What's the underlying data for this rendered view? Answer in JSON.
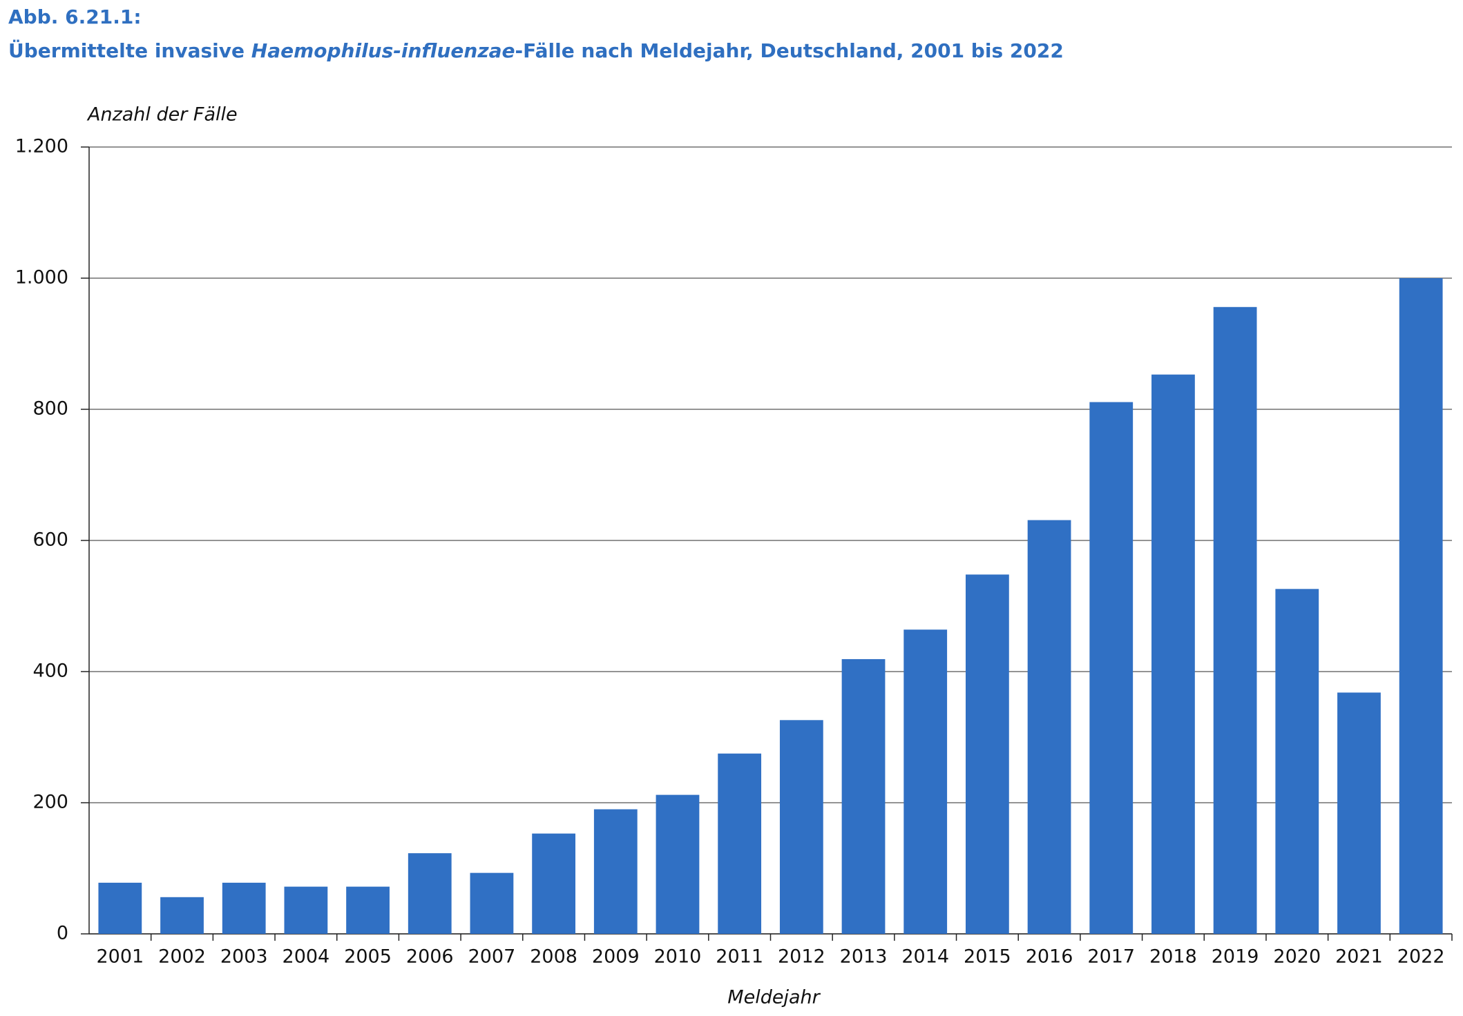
{
  "chart_data": {
    "type": "bar",
    "figure_label": "Abb. 6.21.1:",
    "title_parts": [
      "Übermittelte invasive",
      "Haemophilus-influenzae",
      "-Fälle nach Meldejahr, Deutschland, 2001 bis 2022"
    ],
    "y_label": "Anzahl der Fälle",
    "x_label": "Meldejahr",
    "categories": [
      "2001",
      "2002",
      "2003",
      "2004",
      "2005",
      "2006",
      "2007",
      "2008",
      "2009",
      "2010",
      "2011",
      "2012",
      "2013",
      "2014",
      "2015",
      "2016",
      "2017",
      "2018",
      "2019",
      "2020",
      "2021",
      "2022"
    ],
    "values": [
      78,
      56,
      78,
      72,
      72,
      123,
      93,
      153,
      190,
      212,
      275,
      326,
      419,
      464,
      548,
      631,
      811,
      853,
      956,
      526,
      368,
      1000
    ],
    "color": "#3070c4",
    "ylim": [
      0,
      1200
    ],
    "yticks": [
      0,
      200,
      400,
      600,
      800,
      {
        "value": 1000,
        "label": "1.000"
      },
      {
        "value": 1200,
        "label": "1.200"
      }
    ],
    "grid": true
  }
}
